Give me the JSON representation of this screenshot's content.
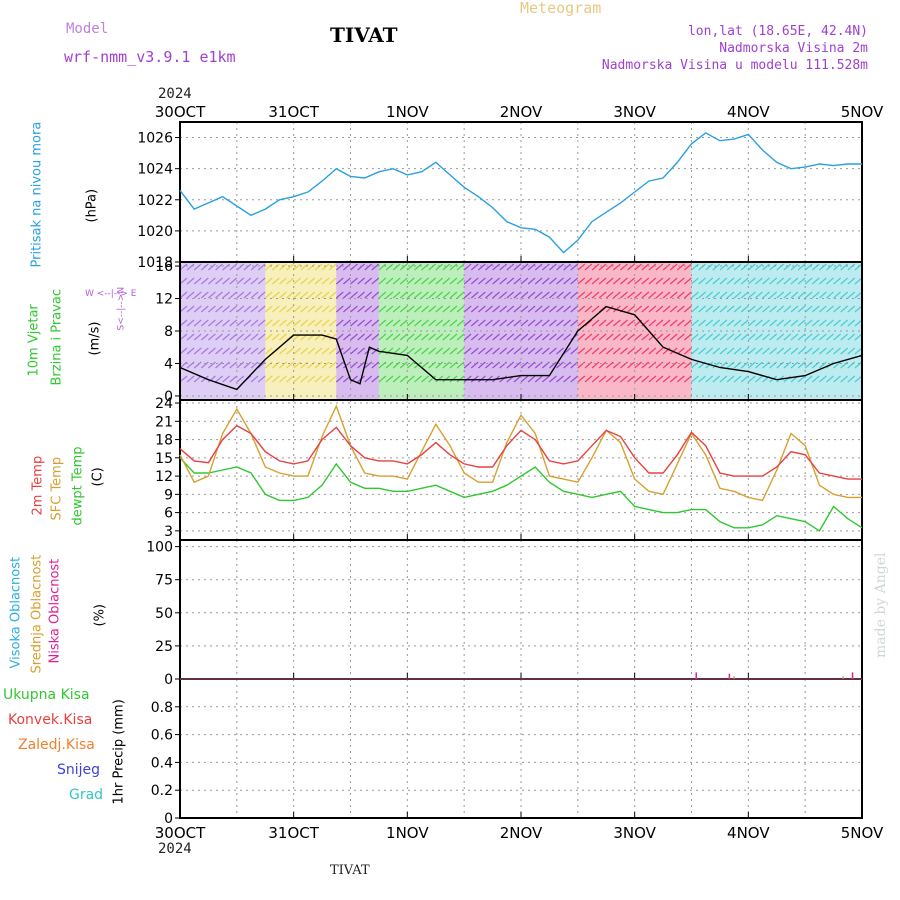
{
  "header": {
    "model_label": "Model",
    "model_name": "wrf-nmm_v3.9.1  e1km",
    "station": "TIVAT",
    "meteogram": "Meteogram",
    "lonlat": "lon,lat (18.65E, 42.4N)",
    "elevation": "Nadmorska Visina 2m",
    "model_elevation": "Nadmorska Visina u modelu 111.528m",
    "year": "2024"
  },
  "footer": {
    "station": "TIVAT",
    "year": "2024"
  },
  "watermark": "made by Angel",
  "colors": {
    "pressure": "#2aa0e0",
    "temp2m": "#e84040",
    "sfc": "#d8a030",
    "dewpt": "#30c830",
    "axis": "#000000",
    "grid": "#999999"
  },
  "panel_labels": {
    "pressure": {
      "name": "Pritisak na nivou mora",
      "unit": "(hPa)"
    },
    "wind": {
      "name1": "10m Vjetar",
      "name2": "Brzina i Pravac",
      "unit": "(m/s)",
      "compass": "W <--|--> E",
      "compass_ns": "S<--|-->N"
    },
    "temp": {
      "t2m": "2m Temp",
      "sfc": "SFC Temp",
      "dew": "dewpt Temp",
      "unit": "(C)"
    },
    "cloud": {
      "high": "Visoka Oblacnost",
      "mid": "Srednja Oblacnost",
      "low": "Niska Oblacnost",
      "unit": "(%)"
    },
    "precip": {
      "total": "Ukupna Kisa",
      "conv": "Konvek.Kisa",
      "frz": "Zaledj.Kisa",
      "snow": "Snijeg",
      "grad": "Grad",
      "unit": "1hr Precip (mm)"
    }
  },
  "chart_data": [
    {
      "type": "line",
      "panel": "pressure",
      "x_ticks": [
        "30OCT",
        "31OCT",
        "1NOV",
        "2NOV",
        "3NOV",
        "4NOV",
        "5NOV"
      ],
      "ylim": [
        1018,
        1027
      ],
      "y_ticks": [
        1018,
        1020,
        1022,
        1024,
        1026
      ],
      "x_hours": [
        0,
        3,
        6,
        9,
        12,
        15,
        18,
        21,
        24,
        27,
        30,
        33,
        36,
        39,
        42,
        45,
        48,
        51,
        54,
        57,
        60,
        63,
        66,
        69,
        72,
        75,
        78,
        81,
        84,
        87,
        90,
        93,
        96,
        99,
        102,
        105,
        108,
        111,
        114,
        117,
        120,
        123,
        126,
        129,
        132,
        135,
        138,
        141,
        144
      ],
      "series": [
        {
          "values": [
            1022.6,
            1021.4,
            1021.8,
            1022.2,
            1021.6,
            1021.0,
            1021.4,
            1022.0,
            1022.2,
            1022.5,
            1023.2,
            1024.0,
            1023.5,
            1023.4,
            1023.8,
            1024.0,
            1023.6,
            1023.8,
            1024.4,
            1023.6,
            1022.8,
            1022.2,
            1021.5,
            1020.6,
            1020.2,
            1020.1,
            1019.6,
            1018.6,
            1019.4,
            1020.6,
            1021.2,
            1021.8,
            1022.5,
            1023.2,
            1023.4,
            1024.4,
            1025.6,
            1026.3,
            1025.8,
            1025.9,
            1026.2,
            1025.2,
            1024.4,
            1024.0,
            1024.1,
            1024.3,
            1024.2,
            1024.3,
            1024.3
          ]
        }
      ]
    },
    {
      "type": "line",
      "panel": "wind_speed",
      "ylim": [
        -0.5,
        16.5
      ],
      "y_ticks": [
        0,
        4,
        8,
        12,
        16
      ],
      "x_hours": [
        0,
        6,
        12,
        18,
        24,
        30,
        33,
        36,
        38,
        40,
        42,
        48,
        54,
        60,
        66,
        72,
        78,
        84,
        90,
        96,
        102,
        108,
        114,
        120,
        126,
        132,
        138,
        144
      ],
      "series": [
        {
          "values": [
            3.5,
            2.0,
            0.8,
            4.5,
            7.5,
            7.5,
            7.0,
            2.0,
            1.5,
            6.0,
            5.5,
            5.0,
            2.0,
            2.0,
            2.0,
            2.5,
            2.5,
            8.0,
            11.0,
            10.0,
            6.0,
            4.5,
            3.5,
            3.0,
            2.0,
            2.5,
            4.0,
            5.0
          ]
        }
      ],
      "shaded_bands": [
        {
          "from_hour": 0,
          "to_hour": 18,
          "color": "mixed"
        },
        {
          "from_hour": 18,
          "to_hour": 33,
          "color": "yellow"
        },
        {
          "from_hour": 33,
          "to_hour": 42,
          "color": "purple"
        },
        {
          "from_hour": 42,
          "to_hour": 60,
          "color": "green"
        },
        {
          "from_hour": 60,
          "to_hour": 84,
          "color": "purple"
        },
        {
          "from_hour": 84,
          "to_hour": 108,
          "color": "red"
        },
        {
          "from_hour": 108,
          "to_hour": 144,
          "color": "cyan"
        }
      ]
    },
    {
      "type": "line",
      "panel": "temperature",
      "ylim": [
        1.5,
        24.5
      ],
      "y_ticks": [
        3,
        6,
        9,
        12,
        15,
        18,
        21,
        24
      ],
      "x_hours": [
        0,
        3,
        6,
        9,
        12,
        15,
        18,
        21,
        24,
        27,
        30,
        33,
        36,
        39,
        42,
        45,
        48,
        51,
        54,
        57,
        60,
        63,
        66,
        69,
        72,
        75,
        78,
        81,
        84,
        87,
        90,
        93,
        96,
        99,
        102,
        105,
        108,
        111,
        114,
        117,
        120,
        123,
        126,
        129,
        132,
        135,
        138,
        141,
        144
      ],
      "series": [
        {
          "values": [
            16.5,
            14.5,
            14.2,
            18.0,
            20.3,
            19.0,
            16.0,
            14.5,
            14.0,
            14.5,
            18.0,
            20.0,
            17.0,
            15.0,
            14.5,
            14.5,
            14.0,
            15.5,
            17.5,
            15.5,
            14.0,
            13.5,
            13.5,
            17.0,
            19.5,
            18.0,
            14.5,
            14.0,
            14.5,
            17.0,
            19.5,
            18.5,
            15.0,
            12.5,
            12.5,
            15.5,
            19.2,
            17.0,
            12.5,
            12.0,
            12.0,
            12.0,
            13.5,
            16.0,
            15.5,
            12.5,
            12.0,
            11.5,
            11.5
          ]
        },
        {
          "values": [
            15.5,
            11.0,
            12.0,
            19.0,
            23.0,
            19.0,
            13.5,
            12.5,
            12.0,
            12.0,
            18.5,
            23.5,
            17.0,
            12.5,
            12.0,
            12.0,
            11.5,
            16.0,
            20.5,
            17.0,
            12.5,
            11.0,
            11.0,
            17.5,
            22.0,
            19.0,
            12.0,
            11.5,
            11.0,
            15.0,
            19.5,
            17.5,
            11.5,
            9.5,
            9.0,
            14.0,
            19.0,
            15.5,
            10.0,
            9.5,
            8.5,
            8.0,
            13.0,
            19.0,
            17.0,
            10.5,
            9.0,
            8.5,
            8.5
          ]
        },
        {
          "values": [
            15.0,
            12.5,
            12.5,
            13.0,
            13.5,
            12.5,
            9.0,
            8.0,
            8.0,
            8.5,
            10.5,
            14.0,
            11.0,
            10.0,
            10.0,
            9.5,
            9.5,
            10.0,
            10.5,
            9.5,
            8.5,
            9.0,
            9.5,
            10.5,
            12.0,
            13.5,
            11.0,
            9.5,
            9.0,
            8.5,
            9.0,
            9.5,
            7.0,
            6.5,
            6.0,
            6.0,
            6.5,
            6.5,
            4.5,
            3.5,
            3.5,
            4.0,
            5.5,
            5.0,
            4.5,
            3.0,
            7.0,
            5.0,
            3.5
          ]
        }
      ]
    },
    {
      "type": "bar",
      "panel": "cloud_cover",
      "ylim": [
        0,
        105
      ],
      "y_ticks": [
        0,
        25,
        50,
        75,
        100
      ],
      "bars": [
        {
          "hour": 109,
          "value": 5,
          "series": "low"
        },
        {
          "hour": 116,
          "value": 4,
          "series": "low"
        },
        {
          "hour": 117,
          "value": 2,
          "series": "mid"
        },
        {
          "hour": 140,
          "value": 2,
          "series": "mid"
        },
        {
          "hour": 142,
          "value": 5,
          "series": "low"
        }
      ]
    },
    {
      "type": "bar",
      "panel": "precip",
      "ylim": [
        0,
        1.0
      ],
      "y_ticks": [
        0,
        0.2,
        0.4,
        0.6,
        0.8
      ],
      "bars": []
    }
  ]
}
